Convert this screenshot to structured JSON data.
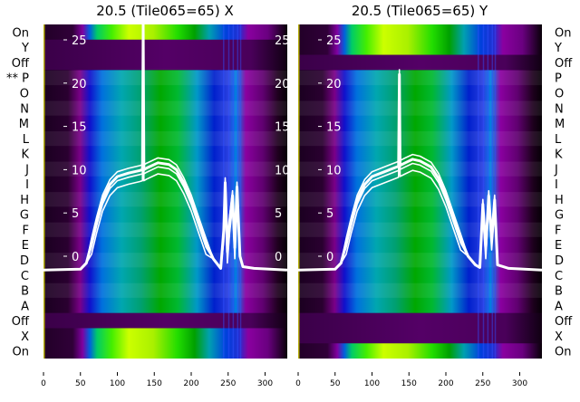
{
  "chart_data": [
    {
      "type": "heatmap",
      "title": "20.5 (Tile065=65) X",
      "xlim": [
        0,
        330
      ],
      "x_ticks": [
        "0",
        "50",
        "100",
        "150",
        "200",
        "250",
        "300"
      ],
      "x_tick_values": [
        0,
        50,
        100,
        150,
        200,
        250,
        300
      ],
      "y_inner_ticks": [
        "0",
        "5",
        "10",
        "15",
        "20",
        "25"
      ],
      "y_inner_tick_values": [
        0,
        5,
        10,
        15,
        20,
        25
      ],
      "ylim": [
        -3.5,
        27.5
      ],
      "row_labels": [
        "On",
        "Y",
        "Off",
        "** P",
        "O",
        "N",
        "M",
        "L",
        "K",
        "J",
        "I",
        "H",
        "G",
        "F",
        "E",
        "D",
        "C",
        "B",
        "A",
        "Off",
        "X",
        "On"
      ],
      "row_states": [
        "on",
        "off",
        "off",
        "data",
        "data",
        "data",
        "data",
        "data",
        "data",
        "data",
        "data",
        "data",
        "data",
        "data",
        "data",
        "data",
        "data",
        "data",
        "data",
        "off",
        "on",
        "on"
      ],
      "series": [
        {
          "name": "profile",
          "x": [
            0,
            50,
            58,
            65,
            72,
            80,
            90,
            100,
            115,
            130,
            134,
            135,
            136,
            140,
            155,
            170,
            180,
            190,
            200,
            210,
            220,
            230,
            240,
            244,
            246,
            249,
            252,
            256,
            259,
            262,
            266,
            270,
            285,
            330
          ],
          "y": [
            -1.6,
            -1.5,
            -0.8,
            1.5,
            4,
            6.5,
            8.3,
            9.2,
            9.6,
            9.9,
            10,
            27,
            10,
            10.2,
            10.8,
            10.6,
            10,
            8.5,
            6.5,
            4,
            1.5,
            -0.3,
            -1.4,
            3,
            8.5,
            0.5,
            4,
            7,
            1,
            8,
            0,
            -1.2,
            -1.4,
            -1.6
          ]
        }
      ]
    },
    {
      "type": "heatmap",
      "title": "20.5 (Tile065=65) Y",
      "xlim": [
        0,
        330
      ],
      "x_ticks": [
        "0",
        "50",
        "100",
        "150",
        "200",
        "250",
        "300"
      ],
      "x_tick_values": [
        0,
        50,
        100,
        150,
        200,
        250,
        300
      ],
      "y_inner_ticks": [
        "0",
        "5",
        "10",
        "15",
        "20",
        "25"
      ],
      "y_inner_tick_values": [
        0,
        5,
        10,
        15,
        20,
        25
      ],
      "ylim": [
        -3.5,
        27.5
      ],
      "row_labels": [
        "On",
        "Y",
        "Off",
        "P",
        "O",
        "N",
        "M",
        "L",
        "K",
        "J",
        "I",
        "H",
        "G",
        "F",
        "E",
        "D",
        "C",
        "B",
        "A",
        "Off",
        "X",
        "On"
      ],
      "row_states": [
        "on",
        "on",
        "off",
        "data",
        "data",
        "data",
        "data",
        "data",
        "data",
        "data",
        "data",
        "data",
        "data",
        "data",
        "data",
        "data",
        "data",
        "data",
        "data",
        "off",
        "off",
        "on"
      ],
      "series": [
        {
          "name": "profile",
          "x": [
            0,
            50,
            58,
            65,
            72,
            80,
            90,
            100,
            115,
            130,
            136,
            137,
            138,
            145,
            155,
            165,
            180,
            190,
            200,
            210,
            220,
            230,
            240,
            246,
            250,
            254,
            258,
            262,
            266,
            270,
            285,
            330
          ],
          "y": [
            -1.6,
            -1.5,
            -0.8,
            1.5,
            4,
            6.5,
            8.3,
            9.2,
            9.7,
            10.2,
            10.4,
            21,
            10.5,
            10.8,
            11.2,
            11,
            10.3,
            9,
            7,
            4.5,
            2,
            0,
            -1,
            -1.3,
            6,
            1,
            7,
            2,
            6.5,
            -1,
            -1.4,
            -1.6
          ]
        }
      ]
    }
  ]
}
